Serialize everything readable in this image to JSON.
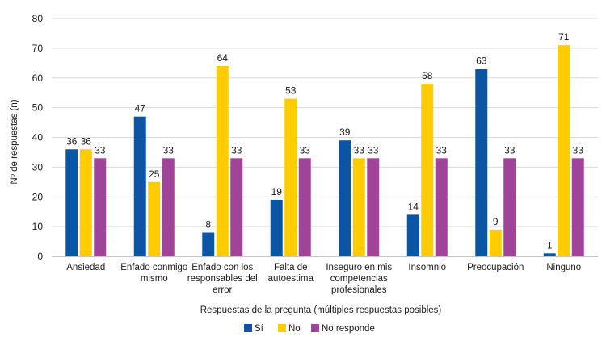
{
  "chart_data": {
    "type": "bar",
    "title": "",
    "xlabel": "Respuestas de la pregunta (múltiples respuestas posibles)",
    "ylabel": "Nº de respuestas (n)",
    "ylim": [
      0,
      80
    ],
    "yticks": [
      0,
      10,
      20,
      30,
      40,
      50,
      60,
      70,
      80
    ],
    "grid": true,
    "legend_position": "bottom",
    "categories": [
      [
        "Ansiedad"
      ],
      [
        "Enfado conmigo",
        "mismo"
      ],
      [
        "Enfado con los",
        "responsables del",
        "error"
      ],
      [
        "Falta de",
        "autoestima"
      ],
      [
        "Inseguro en mis",
        "competencias",
        "profesionales"
      ],
      [
        "Insomnio"
      ],
      [
        "Preocupación"
      ],
      [
        "Ninguno"
      ]
    ],
    "series": [
      {
        "name": "Sí",
        "color": "#0B56A4",
        "values": [
          36,
          47,
          8,
          19,
          39,
          14,
          63,
          1
        ]
      },
      {
        "name": "No",
        "color": "#FFCC00",
        "values": [
          36,
          25,
          64,
          53,
          33,
          58,
          9,
          71
        ]
      },
      {
        "name": "No responde",
        "color": "#A0449A",
        "values": [
          33,
          33,
          33,
          33,
          33,
          33,
          33,
          33
        ]
      }
    ]
  }
}
